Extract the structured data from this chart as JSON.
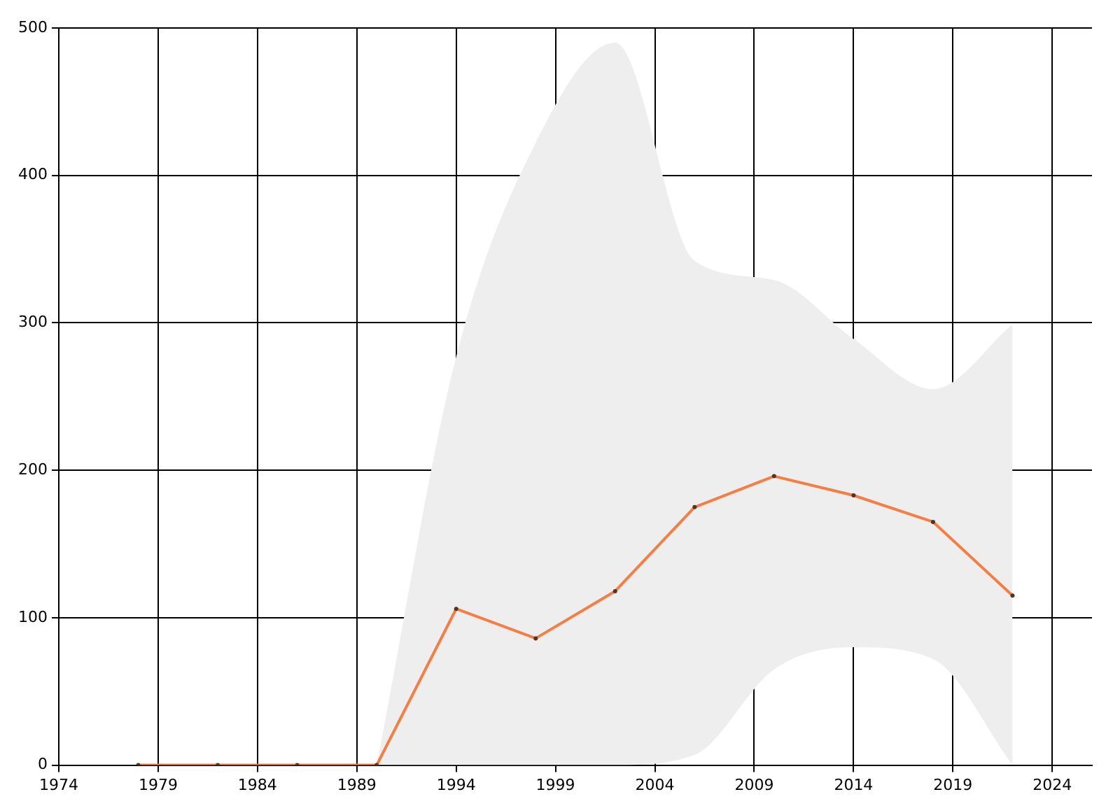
{
  "chart_data": {
    "type": "line",
    "x": [
      1978,
      1982,
      1986,
      1990,
      1994,
      1998,
      2002,
      2006,
      2010,
      2014,
      2018,
      2022
    ],
    "series": [
      {
        "color": "#f47e43",
        "values": [
          0,
          0,
          0,
          0,
          106,
          86,
          118,
          175,
          196,
          183,
          165,
          115
        ],
        "lower": [
          null,
          null,
          null,
          0,
          0,
          0,
          0,
          7,
          65,
          80,
          72,
          0
        ],
        "upper": [
          null,
          null,
          null,
          0,
          277,
          422,
          490,
          342,
          329,
          289,
          255,
          299
        ]
      }
    ],
    "xlim": [
      1974,
      2026
    ],
    "xticks": [
      1974,
      1979,
      1984,
      1989,
      1994,
      1999,
      2004,
      2009,
      2014,
      2019,
      2024
    ],
    "ylim": [
      0,
      500
    ],
    "yticks": [
      0,
      100,
      200,
      300,
      400,
      500
    ],
    "grid": true,
    "legend": false,
    "marker": "circle",
    "line_style": "solid"
  }
}
